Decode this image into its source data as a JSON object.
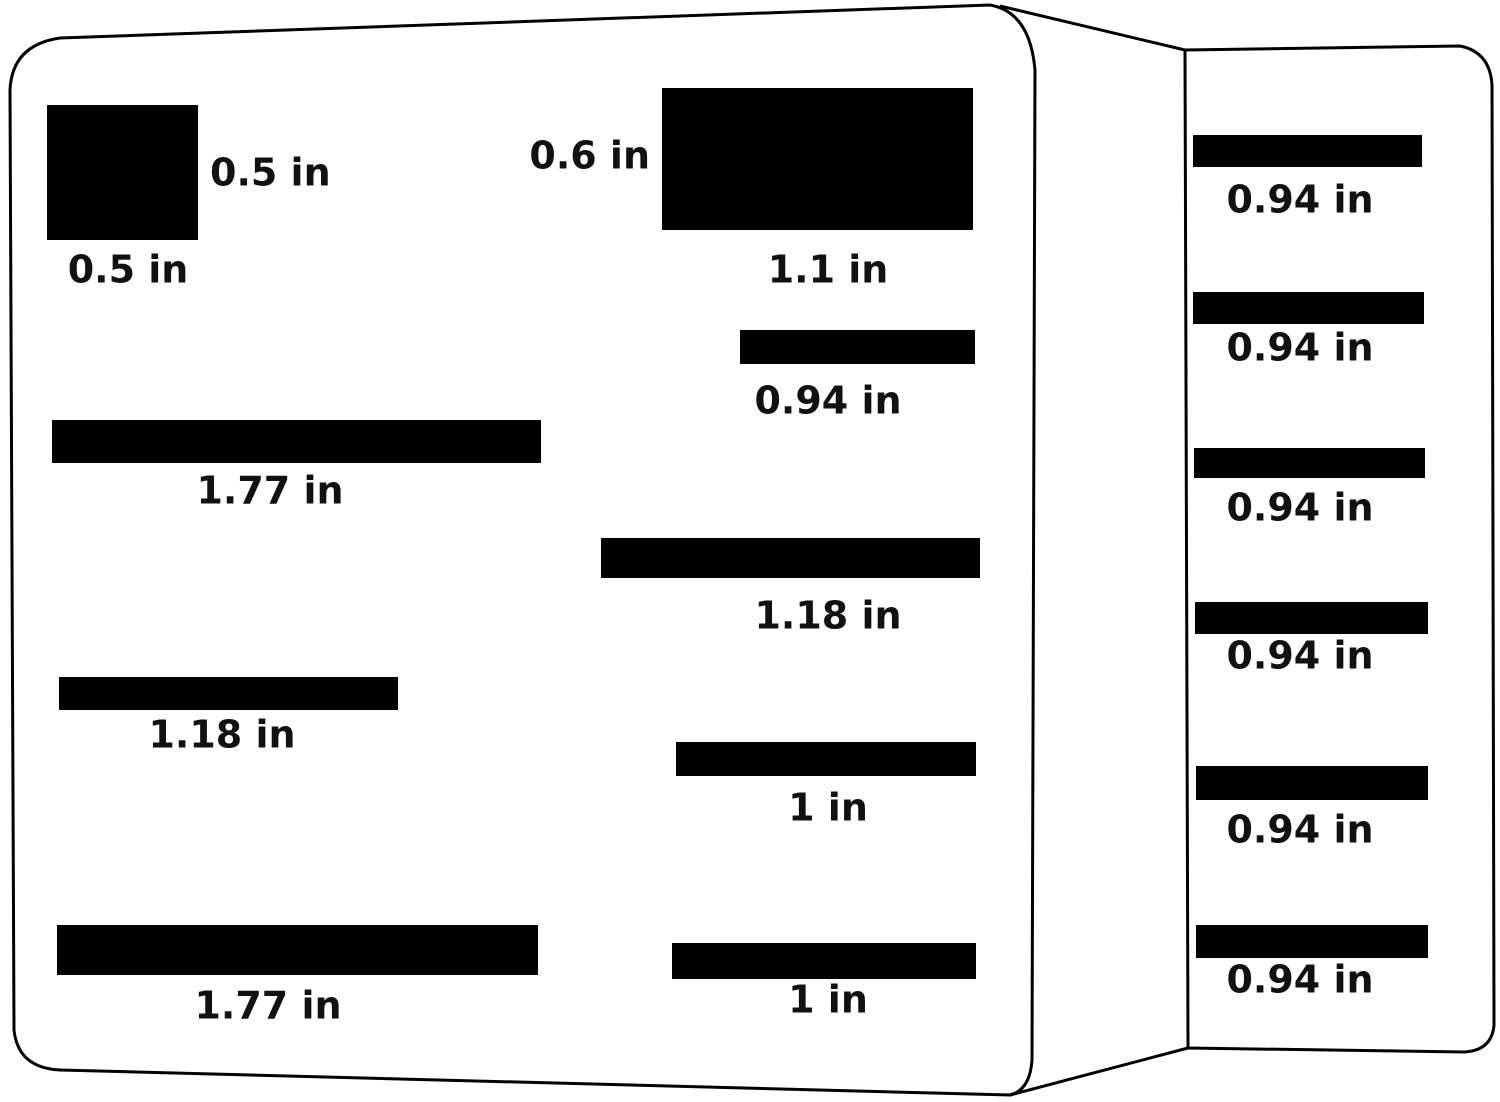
{
  "front": {
    "labels": [
      "0.5 in",
      "0.5 in",
      "0.6 in",
      "1.1 in",
      "0.94 in",
      "1.77 in",
      "1.18 in",
      "1.18 in",
      "1 in",
      "1.77 in",
      "1 in"
    ]
  },
  "side": {
    "labels": [
      "0.94 in",
      "0.94 in",
      "0.94 in",
      "0.94 in",
      "0.94 in",
      "0.94 in"
    ]
  }
}
